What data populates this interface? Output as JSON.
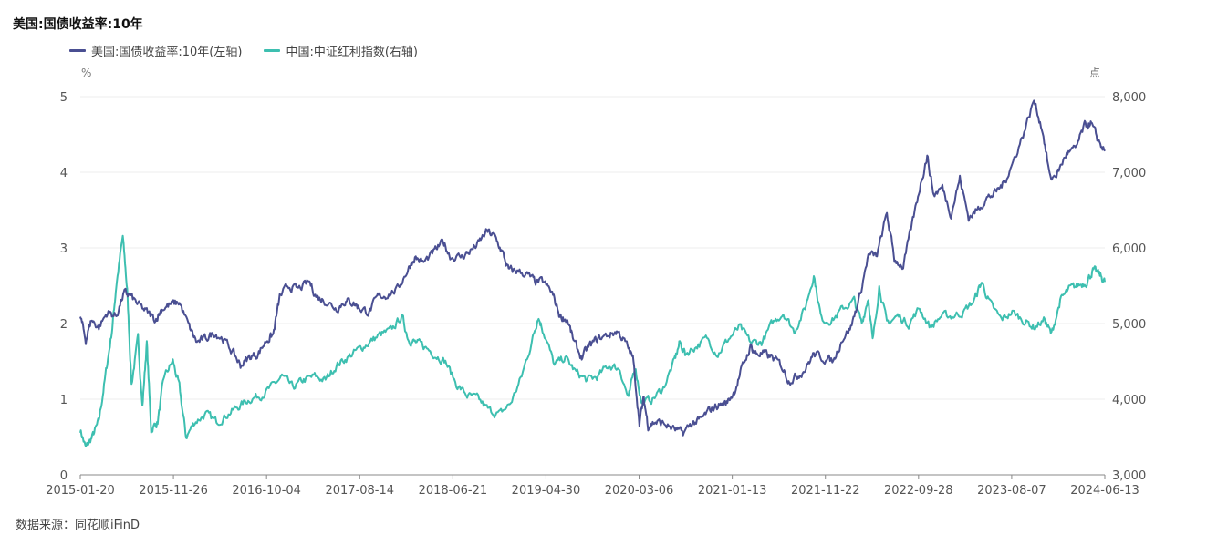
{
  "title": "美国:国债收益率:10年",
  "source": "数据来源：同花顺iFinD",
  "colors": {
    "us10y": "#4a4f92",
    "dividend": "#3dbfb0",
    "grid": "#ececec",
    "axis": "#888888"
  },
  "chart_data": {
    "type": "line",
    "x_ticks": [
      "2015-01-20",
      "2015-11-26",
      "2016-10-04",
      "2017-08-14",
      "2018-06-21",
      "2019-04-30",
      "2020-03-06",
      "2021-01-13",
      "2021-11-22",
      "2022-09-28",
      "2023-08-07",
      "2024-06-13"
    ],
    "y_left": {
      "label": "%",
      "ylim": [
        0,
        5
      ],
      "ticks": [
        "0",
        "1",
        "2",
        "3",
        "4",
        "5"
      ]
    },
    "y_right": {
      "label": "点",
      "ylim": [
        3000,
        8000
      ],
      "ticks": [
        "3,000",
        "4,000",
        "5,000",
        "6,000",
        "7,000",
        "8,000"
      ]
    },
    "series": [
      {
        "name": "美国:国债收益率:10年(左轴)",
        "axis": "left",
        "points": [
          [
            2015.05,
            2.1
          ],
          [
            2015.1,
            1.78
          ],
          [
            2015.15,
            2.05
          ],
          [
            2015.22,
            1.95
          ],
          [
            2015.3,
            2.15
          ],
          [
            2015.38,
            2.1
          ],
          [
            2015.45,
            2.4
          ],
          [
            2015.5,
            2.38
          ],
          [
            2015.58,
            2.25
          ],
          [
            2015.66,
            2.15
          ],
          [
            2015.74,
            2.05
          ],
          [
            2015.8,
            2.2
          ],
          [
            2015.88,
            2.25
          ],
          [
            2015.96,
            2.28
          ],
          [
            2016.05,
            1.95
          ],
          [
            2016.12,
            1.75
          ],
          [
            2016.2,
            1.8
          ],
          [
            2016.28,
            1.88
          ],
          [
            2016.36,
            1.8
          ],
          [
            2016.45,
            1.62
          ],
          [
            2016.52,
            1.45
          ],
          [
            2016.6,
            1.55
          ],
          [
            2016.68,
            1.6
          ],
          [
            2016.76,
            1.78
          ],
          [
            2016.82,
            1.85
          ],
          [
            2016.88,
            2.35
          ],
          [
            2016.96,
            2.5
          ],
          [
            2017.05,
            2.45
          ],
          [
            2017.15,
            2.55
          ],
          [
            2017.22,
            2.35
          ],
          [
            2017.3,
            2.3
          ],
          [
            2017.4,
            2.2
          ],
          [
            2017.48,
            2.3
          ],
          [
            2017.55,
            2.28
          ],
          [
            2017.62,
            2.2
          ],
          [
            2017.7,
            2.15
          ],
          [
            2017.78,
            2.35
          ],
          [
            2017.86,
            2.38
          ],
          [
            2017.96,
            2.45
          ],
          [
            2018.05,
            2.7
          ],
          [
            2018.12,
            2.88
          ],
          [
            2018.2,
            2.8
          ],
          [
            2018.3,
            2.95
          ],
          [
            2018.38,
            3.08
          ],
          [
            2018.45,
            2.88
          ],
          [
            2018.55,
            2.88
          ],
          [
            2018.62,
            2.95
          ],
          [
            2018.7,
            3.05
          ],
          [
            2018.78,
            3.22
          ],
          [
            2018.85,
            3.15
          ],
          [
            2018.92,
            2.95
          ],
          [
            2018.98,
            2.7
          ],
          [
            2019.05,
            2.7
          ],
          [
            2019.15,
            2.65
          ],
          [
            2019.22,
            2.55
          ],
          [
            2019.3,
            2.55
          ],
          [
            2019.38,
            2.4
          ],
          [
            2019.45,
            2.1
          ],
          [
            2019.52,
            2.05
          ],
          [
            2019.58,
            1.75
          ],
          [
            2019.65,
            1.55
          ],
          [
            2019.72,
            1.7
          ],
          [
            2019.8,
            1.8
          ],
          [
            2019.9,
            1.85
          ],
          [
            2019.98,
            1.9
          ],
          [
            2020.05,
            1.75
          ],
          [
            2020.12,
            1.55
          ],
          [
            2020.18,
            0.7
          ],
          [
            2020.22,
            1.0
          ],
          [
            2020.26,
            0.65
          ],
          [
            2020.32,
            0.7
          ],
          [
            2020.4,
            0.68
          ],
          [
            2020.5,
            0.6
          ],
          [
            2020.58,
            0.55
          ],
          [
            2020.66,
            0.68
          ],
          [
            2020.74,
            0.72
          ],
          [
            2020.82,
            0.85
          ],
          [
            2020.9,
            0.92
          ],
          [
            2020.98,
            0.95
          ],
          [
            2021.05,
            1.1
          ],
          [
            2021.12,
            1.4
          ],
          [
            2021.2,
            1.7
          ],
          [
            2021.25,
            1.6
          ],
          [
            2021.32,
            1.6
          ],
          [
            2021.4,
            1.55
          ],
          [
            2021.48,
            1.45
          ],
          [
            2021.55,
            1.25
          ],
          [
            2021.62,
            1.3
          ],
          [
            2021.7,
            1.4
          ],
          [
            2021.78,
            1.6
          ],
          [
            2021.86,
            1.55
          ],
          [
            2021.96,
            1.5
          ],
          [
            2022.04,
            1.8
          ],
          [
            2022.12,
            1.95
          ],
          [
            2022.2,
            2.35
          ],
          [
            2022.28,
            2.9
          ],
          [
            2022.36,
            2.9
          ],
          [
            2022.45,
            3.45
          ],
          [
            2022.52,
            2.85
          ],
          [
            2022.6,
            2.75
          ],
          [
            2022.68,
            3.3
          ],
          [
            2022.76,
            3.85
          ],
          [
            2022.82,
            4.22
          ],
          [
            2022.88,
            3.7
          ],
          [
            2022.96,
            3.8
          ],
          [
            2023.04,
            3.45
          ],
          [
            2023.12,
            3.92
          ],
          [
            2023.2,
            3.4
          ],
          [
            2023.28,
            3.5
          ],
          [
            2023.36,
            3.65
          ],
          [
            2023.44,
            3.72
          ],
          [
            2023.52,
            3.85
          ],
          [
            2023.6,
            4.1
          ],
          [
            2023.7,
            4.5
          ],
          [
            2023.8,
            4.95
          ],
          [
            2023.88,
            4.55
          ],
          [
            2023.95,
            3.9
          ],
          [
            2024.02,
            4.0
          ],
          [
            2024.1,
            4.25
          ],
          [
            2024.18,
            4.3
          ],
          [
            2024.26,
            4.6
          ],
          [
            2024.32,
            4.65
          ],
          [
            2024.38,
            4.45
          ],
          [
            2024.45,
            4.28
          ]
        ]
      },
      {
        "name": "中国:中证红利指数(右轴)",
        "axis": "right",
        "points": [
          [
            2015.05,
            3600
          ],
          [
            2015.1,
            3350
          ],
          [
            2015.16,
            3500
          ],
          [
            2015.22,
            3700
          ],
          [
            2015.28,
            4300
          ],
          [
            2015.34,
            4900
          ],
          [
            2015.38,
            5500
          ],
          [
            2015.44,
            6150
          ],
          [
            2015.48,
            5450
          ],
          [
            2015.52,
            4200
          ],
          [
            2015.58,
            4800
          ],
          [
            2015.62,
            3900
          ],
          [
            2015.66,
            4750
          ],
          [
            2015.7,
            3600
          ],
          [
            2015.76,
            3700
          ],
          [
            2015.82,
            4300
          ],
          [
            2015.9,
            4500
          ],
          [
            2015.96,
            4150
          ],
          [
            2016.02,
            3500
          ],
          [
            2016.1,
            3700
          ],
          [
            2016.2,
            3800
          ],
          [
            2016.3,
            3700
          ],
          [
            2016.4,
            3800
          ],
          [
            2016.5,
            3900
          ],
          [
            2016.6,
            4000
          ],
          [
            2016.7,
            4050
          ],
          [
            2016.8,
            4150
          ],
          [
            2016.9,
            4300
          ],
          [
            2017.0,
            4150
          ],
          [
            2017.1,
            4250
          ],
          [
            2017.2,
            4300
          ],
          [
            2017.3,
            4250
          ],
          [
            2017.4,
            4450
          ],
          [
            2017.5,
            4550
          ],
          [
            2017.6,
            4650
          ],
          [
            2017.7,
            4750
          ],
          [
            2017.8,
            4850
          ],
          [
            2017.9,
            4900
          ],
          [
            2018.0,
            5100
          ],
          [
            2018.06,
            4800
          ],
          [
            2018.12,
            4750
          ],
          [
            2018.2,
            4700
          ],
          [
            2018.3,
            4600
          ],
          [
            2018.4,
            4500
          ],
          [
            2018.5,
            4200
          ],
          [
            2018.6,
            4050
          ],
          [
            2018.7,
            4000
          ],
          [
            2018.8,
            3850
          ],
          [
            2018.9,
            3800
          ],
          [
            2019.0,
            3950
          ],
          [
            2019.1,
            4300
          ],
          [
            2019.2,
            4800
          ],
          [
            2019.25,
            5100
          ],
          [
            2019.3,
            4900
          ],
          [
            2019.4,
            4450
          ],
          [
            2019.5,
            4550
          ],
          [
            2019.6,
            4350
          ],
          [
            2019.7,
            4250
          ],
          [
            2019.8,
            4300
          ],
          [
            2019.9,
            4450
          ],
          [
            2020.0,
            4400
          ],
          [
            2020.08,
            4000
          ],
          [
            2020.14,
            4450
          ],
          [
            2020.2,
            3950
          ],
          [
            2020.3,
            4000
          ],
          [
            2020.4,
            4150
          ],
          [
            2020.5,
            4500
          ],
          [
            2020.55,
            4750
          ],
          [
            2020.6,
            4600
          ],
          [
            2020.7,
            4700
          ],
          [
            2020.8,
            4800
          ],
          [
            2020.9,
            4600
          ],
          [
            2021.0,
            4800
          ],
          [
            2021.1,
            4950
          ],
          [
            2021.2,
            4750
          ],
          [
            2021.3,
            4750
          ],
          [
            2021.4,
            5000
          ],
          [
            2021.5,
            5150
          ],
          [
            2021.6,
            4900
          ],
          [
            2021.7,
            5200
          ],
          [
            2021.78,
            5650
          ],
          [
            2021.85,
            5050
          ],
          [
            2021.95,
            5050
          ],
          [
            2022.05,
            5200
          ],
          [
            2022.15,
            5300
          ],
          [
            2022.22,
            5000
          ],
          [
            2022.28,
            5350
          ],
          [
            2022.32,
            4750
          ],
          [
            2022.38,
            5500
          ],
          [
            2022.45,
            5000
          ],
          [
            2022.55,
            5100
          ],
          [
            2022.65,
            5000
          ],
          [
            2022.75,
            5200
          ],
          [
            2022.85,
            4950
          ],
          [
            2022.95,
            5100
          ],
          [
            2023.05,
            5100
          ],
          [
            2023.15,
            5150
          ],
          [
            2023.25,
            5300
          ],
          [
            2023.32,
            5550
          ],
          [
            2023.4,
            5250
          ],
          [
            2023.5,
            5050
          ],
          [
            2023.6,
            5150
          ],
          [
            2023.7,
            5050
          ],
          [
            2023.8,
            4950
          ],
          [
            2023.9,
            5050
          ],
          [
            2023.96,
            4850
          ],
          [
            2024.04,
            5300
          ],
          [
            2024.12,
            5450
          ],
          [
            2024.2,
            5500
          ],
          [
            2024.28,
            5550
          ],
          [
            2024.34,
            5700
          ],
          [
            2024.4,
            5650
          ],
          [
            2024.45,
            5550
          ]
        ]
      }
    ]
  }
}
